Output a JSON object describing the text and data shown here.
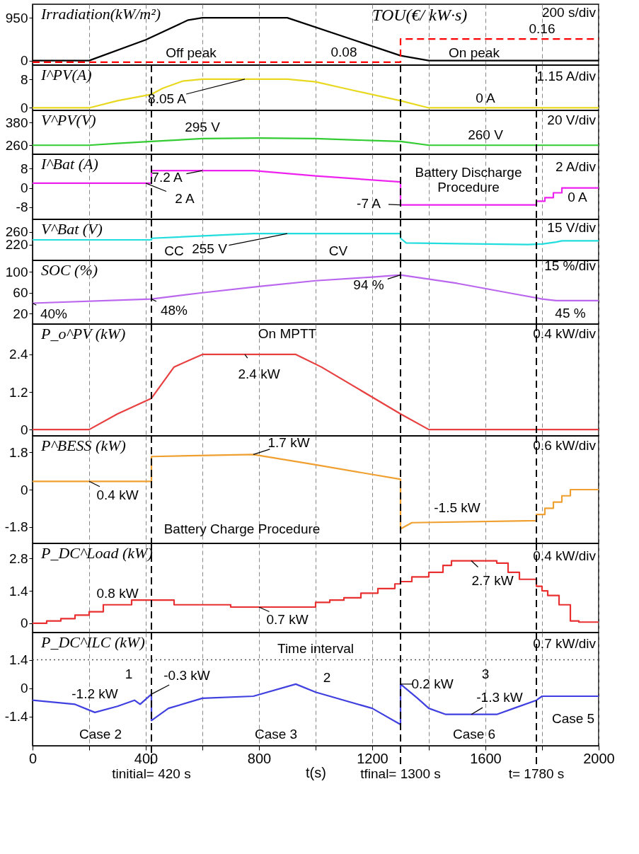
{
  "chart_data": [
    {
      "type": "line",
      "ylabel": "Irradiation(kW/m²)",
      "y2label": "TOU(€/ kW·s)",
      "xlim": [
        0,
        2000
      ],
      "ylim": [
        -100,
        1250
      ],
      "yticks": [
        0,
        950
      ],
      "y2lim": [
        0.07,
        0.28
      ],
      "xticks": [
        0,
        {
          "value": 200,
          "label": null
        },
        400,
        {
          "value": 600,
          "label": null
        },
        800,
        {
          "value": 1000,
          "label": null
        },
        1200,
        {
          "value": 1400,
          "label": null
        },
        1600,
        {
          "value": 1800,
          "label": null
        },
        2000
      ],
      "tick_labels": "y",
      "grid": "x",
      "series": [
        {
          "color": "#000000",
          "x": [
            0,
            200,
            400,
            550,
            600,
            900,
            1300,
            1400,
            2000
          ],
          "values": [
            0,
            0,
            460,
            900,
            950,
            950,
            110,
            0,
            0
          ]
        },
        {
          "color": "#ff0000",
          "axis": "y2",
          "line_style": "dashed",
          "x": [
            0,
            1100,
            1300,
            1300,
            1800,
            2000
          ],
          "values": [
            0.08,
            0.08,
            0.08,
            0.16,
            0.16,
            0.16
          ],
          "value_labels": [
            null,
            "0.08",
            null,
            null,
            "0.16",
            null
          ]
        }
      ],
      "annotations": [
        "Off peak",
        "On peak",
        "200 s/div"
      ]
    },
    {
      "type": "line",
      "ylabel": "I^PV(A)",
      "xlim": [
        0,
        2000
      ],
      "ylim": [
        -0.7,
        12
      ],
      "yticks": [
        0,
        8
      ],
      "xticks": [
        0,
        {
          "value": 200,
          "label": null
        },
        400,
        {
          "value": 600,
          "label": null
        },
        800,
        {
          "value": 1000,
          "label": null
        },
        1200,
        {
          "value": 1400,
          "label": null
        },
        1600,
        {
          "value": 1800,
          "label": null
        },
        2000
      ],
      "tick_labels": "y",
      "grid": "x",
      "series": [
        {
          "color": "#e8d820",
          "x": [
            0,
            200,
            300,
            420,
            460,
            530,
            600,
            900,
            1000,
            1100,
            1300,
            1400,
            2000
          ],
          "values": [
            0,
            0,
            2,
            3.8,
            5.5,
            7.5,
            8.05,
            8.05,
            7.3,
            5.5,
            2,
            0,
            0
          ]
        }
      ],
      "ref_lines": [
        {
          "axis": "x",
          "value": 420,
          "line_style": "dashed"
        },
        {
          "axis": "x",
          "value": 1300,
          "line_style": "dashed"
        },
        {
          "axis": "x",
          "value": 1780,
          "line_style": "dashed"
        }
      ],
      "annotations": [
        {
          "text": "8.05 A",
          "x": 750,
          "y": 8.05
        },
        {
          "text": "0 A",
          "x": 1600,
          "y": 0
        },
        "1.15 A/div"
      ]
    },
    {
      "type": "line",
      "ylabel": "V^PV(V)",
      "xlim": [
        0,
        2000
      ],
      "ylim": [
        212,
        445
      ],
      "yticks": [
        260,
        380
      ],
      "xticks": [
        0,
        {
          "value": 200,
          "label": null
        },
        400,
        {
          "value": 600,
          "label": null
        },
        800,
        {
          "value": 1000,
          "label": null
        },
        1200,
        {
          "value": 1400,
          "label": null
        },
        1600,
        {
          "value": 1800,
          "label": null
        },
        2000
      ],
      "tick_labels": "y",
      "grid": "x",
      "series": [
        {
          "color": "#33cc33",
          "x": [
            0,
            200,
            300,
            420,
            600,
            800,
            1000,
            1200,
            1300,
            1400,
            2000
          ],
          "values": [
            260,
            260,
            270,
            280,
            295,
            298,
            295,
            285,
            280,
            260,
            260
          ]
        }
      ],
      "ref_lines": [
        {
          "axis": "x",
          "value": 420,
          "line_style": "dashed"
        },
        {
          "axis": "x",
          "value": 1300,
          "line_style": "dashed"
        },
        {
          "axis": "x",
          "value": 1780,
          "line_style": "dashed"
        }
      ],
      "annotations": [
        {
          "text": "295 V",
          "x": 600,
          "y": 295
        },
        {
          "text": "260 V",
          "x": 1600,
          "y": 260
        },
        "20 V/div"
      ]
    },
    {
      "type": "line",
      "ylabel": "I^Bat (A)",
      "xlim": [
        0,
        2000
      ],
      "ylim": [
        -13,
        14
      ],
      "yticks": [
        -8,
        0,
        8
      ],
      "xticks": [
        0,
        {
          "value": 200,
          "label": null
        },
        400,
        {
          "value": 600,
          "label": null
        },
        800,
        {
          "value": 1000,
          "label": null
        },
        1200,
        {
          "value": 1400,
          "label": null
        },
        1600,
        {
          "value": 1800,
          "label": null
        },
        2000
      ],
      "tick_labels": "y",
      "grid": "x",
      "series": [
        {
          "color": "#ee22ee",
          "x": [
            0,
            420,
            420,
            780,
            1000,
            1300,
            1300,
            1780,
            1780,
            1810,
            1810,
            1840,
            1840,
            1870,
            1870,
            2000
          ],
          "values": [
            2,
            2,
            7.2,
            7.2,
            5,
            2.5,
            -7,
            -7,
            -5.5,
            -5.5,
            -4,
            -4,
            -2,
            -2,
            0,
            0
          ]
        }
      ],
      "ref_lines": [
        {
          "axis": "x",
          "value": 420,
          "line_style": "dashed"
        },
        {
          "axis": "x",
          "value": 1300,
          "line_style": "dashed"
        },
        {
          "axis": "x",
          "value": 1780,
          "line_style": "dashed"
        }
      ],
      "annotations": [
        {
          "text": "7.2 A",
          "x": 600,
          "y": 7.2
        },
        {
          "text": "2 A",
          "x": 400,
          "y": 2
        },
        {
          "text": "-7 A",
          "x": 1300,
          "y": -7
        },
        "Battery Discharge\nProcedure",
        {
          "text": "0 A",
          "x": 1950,
          "y": 0
        },
        "2 A/div"
      ]
    },
    {
      "type": "line",
      "ylabel": "V^Bat (V)",
      "xlim": [
        0,
        2000
      ],
      "ylim": [
        170,
        300
      ],
      "yticks": [
        220,
        260
      ],
      "xticks": [
        0,
        {
          "value": 200,
          "label": null
        },
        400,
        {
          "value": 600,
          "label": null
        },
        800,
        {
          "value": 1000,
          "label": null
        },
        1200,
        {
          "value": 1400,
          "label": null
        },
        1600,
        {
          "value": 1800,
          "label": null
        },
        2000
      ],
      "tick_labels": "y",
      "grid": "x",
      "series": [
        {
          "color": "#22dddd",
          "x": [
            0,
            420,
            420,
            780,
            1300,
            1300,
            1320,
            1500,
            1750,
            1800,
            1850,
            1870,
            2000
          ],
          "values": [
            235,
            235,
            240,
            255,
            255,
            240,
            225,
            223,
            220,
            222,
            228,
            232,
            232
          ]
        }
      ],
      "ref_lines": [
        {
          "axis": "x",
          "value": 420,
          "line_style": "dashed"
        },
        {
          "axis": "x",
          "value": 1300,
          "line_style": "dashed"
        },
        {
          "axis": "x",
          "value": 1780,
          "line_style": "dashed"
        }
      ],
      "annotations": [
        {
          "text": "255 V",
          "x": 900,
          "y": 255
        },
        "CC",
        "CV",
        "15 V/div"
      ]
    },
    {
      "type": "line",
      "ylabel": "SOC (%)",
      "xlim": [
        0,
        2000
      ],
      "ylim": [
        0,
        122
      ],
      "yticks": [
        20,
        60,
        100
      ],
      "xticks": [
        0,
        {
          "value": 200,
          "label": null
        },
        400,
        {
          "value": 600,
          "label": null
        },
        800,
        {
          "value": 1000,
          "label": null
        },
        1200,
        {
          "value": 1400,
          "label": null
        },
        1600,
        {
          "value": 1800,
          "label": null
        },
        2000
      ],
      "tick_labels": "y",
      "grid": "x",
      "series": [
        {
          "color": "#bb66ee",
          "x": [
            0,
            420,
            600,
            800,
            1000,
            1200,
            1300,
            1500,
            1700,
            1800,
            1850,
            2000
          ],
          "values": [
            40,
            48,
            60,
            72,
            83,
            90,
            94,
            78,
            58,
            48,
            45,
            45
          ]
        }
      ],
      "ref_lines": [
        {
          "axis": "x",
          "value": 420,
          "line_style": "dashed"
        },
        {
          "axis": "x",
          "value": 1300,
          "line_style": "dashed"
        },
        {
          "axis": "x",
          "value": 1780,
          "line_style": "dashed"
        }
      ],
      "annotations": [
        {
          "text": "40%",
          "x": 0,
          "y": 40
        },
        {
          "text": "48%",
          "x": 420,
          "y": 48
        },
        {
          "text": "94 %",
          "x": 1300,
          "y": 94
        },
        {
          "text": "45 %",
          "x": 1900,
          "y": 45
        },
        "15 %/div"
      ]
    },
    {
      "type": "line",
      "ylabel": "P_o^PV (kW)",
      "xlim": [
        0,
        2000
      ],
      "ylim": [
        -0.2,
        3.37
      ],
      "yticks": [
        0,
        1.2,
        2.4
      ],
      "xticks": [
        0,
        {
          "value": 200,
          "label": null
        },
        400,
        {
          "value": 600,
          "label": null
        },
        800,
        {
          "value": 1000,
          "label": null
        },
        1200,
        {
          "value": 1400,
          "label": null
        },
        1600,
        {
          "value": 1800,
          "label": null
        },
        2000
      ],
      "tick_labels": "y",
      "grid": "x",
      "series": [
        {
          "color": "#e84040",
          "x": [
            0,
            200,
            300,
            420,
            500,
            600,
            930,
            1020,
            1300,
            1400,
            2000
          ],
          "values": [
            0,
            0,
            0.5,
            1.0,
            2.0,
            2.4,
            2.4,
            2.0,
            0.5,
            0,
            0
          ]
        }
      ],
      "ref_lines": [
        {
          "axis": "x",
          "value": 420,
          "line_style": "dashed"
        },
        {
          "axis": "x",
          "value": 1300,
          "line_style": "dashed"
        },
        {
          "axis": "x",
          "value": 1780,
          "line_style": "dashed"
        }
      ],
      "annotations": [
        "On MPTT",
        {
          "text": "2.4 kW",
          "x": 750,
          "y": 2.4
        },
        "0.4 kW/div"
      ]
    },
    {
      "type": "line",
      "ylabel": "P^BESS (kW)",
      "xlim": [
        0,
        2000
      ],
      "ylim": [
        -2.6,
        2.6
      ],
      "yticks": [
        -1.8,
        0,
        1.8
      ],
      "xticks": [
        0,
        {
          "value": 200,
          "label": null
        },
        400,
        {
          "value": 600,
          "label": null
        },
        800,
        {
          "value": 1000,
          "label": null
        },
        1200,
        {
          "value": 1400,
          "label": null
        },
        1600,
        {
          "value": 1800,
          "label": null
        },
        2000
      ],
      "tick_labels": "y",
      "grid": "x",
      "series": [
        {
          "color": "#f0a030",
          "x": [
            0,
            420,
            420,
            780,
            1000,
            1300,
            1300,
            1340,
            1780,
            1780,
            1810,
            1810,
            1840,
            1840,
            1870,
            1870,
            1900,
            1900,
            2000
          ],
          "values": [
            0.4,
            0.4,
            1.6,
            1.7,
            1.2,
            0.5,
            -1.9,
            -1.6,
            -1.5,
            -1.2,
            -1.2,
            -0.9,
            -0.9,
            -0.6,
            -0.6,
            -0.3,
            -0.3,
            0,
            0
          ]
        }
      ],
      "ref_lines": [
        {
          "axis": "x",
          "value": 420,
          "line_style": "dashed"
        },
        {
          "axis": "x",
          "value": 1300,
          "line_style": "dashed"
        },
        {
          "axis": "x",
          "value": 1780,
          "line_style": "dashed"
        }
      ],
      "annotations": [
        {
          "text": "1.7 kW",
          "x": 780,
          "y": 1.7
        },
        {
          "text": "0.4 kW",
          "x": 200,
          "y": 0.4
        },
        {
          "text": "-1.5 kW",
          "x": 1500,
          "y": -1.5
        },
        "Battery Charge Procedure",
        "0.6 kW/div"
      ]
    },
    {
      "type": "step",
      "ylabel": "P_DC^Load (kW)",
      "xlim": [
        0,
        2000
      ],
      "ylim": [
        -0.4,
        3.45
      ],
      "yticks": [
        0,
        1.4,
        2.8
      ],
      "xticks": [
        0,
        {
          "value": 200,
          "label": null
        },
        400,
        {
          "value": 600,
          "label": null
        },
        800,
        {
          "value": 1000,
          "label": null
        },
        1200,
        {
          "value": 1400,
          "label": null
        },
        1600,
        {
          "value": 1800,
          "label": null
        },
        2000
      ],
      "tick_labels": "y",
      "grid": "x",
      "series": [
        {
          "color": "#e83030",
          "x": [
            0,
            50,
            100,
            150,
            200,
            250,
            350,
            500,
            700,
            1000,
            1050,
            1100,
            1160,
            1220,
            1280,
            1300,
            1340,
            1400,
            1450,
            1480,
            1640,
            1680,
            1720,
            1780,
            1800,
            1820,
            1860,
            1900,
            1930,
            2000
          ],
          "values": [
            0,
            0.1,
            0.2,
            0.35,
            0.5,
            0.8,
            1.0,
            0.8,
            0.7,
            0.9,
            1.0,
            1.1,
            1.3,
            1.5,
            1.7,
            1.8,
            2.0,
            2.2,
            2.5,
            2.7,
            2.6,
            2.2,
            1.9,
            1.6,
            1.4,
            1.2,
            0.8,
            0.1,
            0.05,
            0.05
          ]
        }
      ],
      "ref_lines": [
        {
          "axis": "x",
          "value": 420,
          "line_style": "dashed"
        },
        {
          "axis": "x",
          "value": 1300,
          "line_style": "dashed"
        },
        {
          "axis": "x",
          "value": 1780,
          "line_style": "dashed"
        }
      ],
      "annotations": [
        {
          "text": "0.8 kW",
          "x": 300,
          "y": 0.8
        },
        {
          "text": "0.7 kW",
          "x": 800,
          "y": 0.7
        },
        {
          "text": "2.7 kW",
          "x": 1550,
          "y": 2.7
        },
        "0.4 kW/div"
      ]
    },
    {
      "type": "line",
      "ylabel": "P_DC^ILC (kW)",
      "xlabel": "t(s)",
      "xlim": [
        0,
        2000
      ],
      "ylim": [
        -2.85,
        2.75
      ],
      "yticks": [
        -1.4,
        0,
        1.4
      ],
      "xticks": [
        0,
        {
          "value": 200,
          "label": null
        },
        400,
        {
          "value": 600,
          "label": null
        },
        800,
        {
          "value": 1000,
          "label": null
        },
        1200,
        {
          "value": 1400,
          "label": null
        },
        1600,
        {
          "value": 1800,
          "label": null
        },
        2000
      ],
      "grid": "x",
      "series": [
        {
          "color": "#4040e0",
          "x": [
            0,
            150,
            220,
            300,
            360,
            380,
            420,
            420,
            480,
            600,
            780,
            930,
            1000,
            1200,
            1300,
            1300,
            1360,
            1400,
            1460,
            1640,
            1700,
            1780,
            1800,
            2000
          ],
          "values": [
            -0.6,
            -0.8,
            -1.2,
            -0.9,
            -0.6,
            -0.8,
            -0.3,
            -1.6,
            -1.0,
            -0.5,
            -0.4,
            0.2,
            -0.2,
            -1.0,
            -1.8,
            0.2,
            -0.5,
            -1.0,
            -1.3,
            -1.3,
            -1.0,
            -0.6,
            -0.4,
            -0.4
          ]
        }
      ],
      "ref_lines": [
        {
          "axis": "x",
          "value": 420,
          "line_style": "dashed",
          "label": "tinitial= 420 s"
        },
        {
          "axis": "x",
          "value": 1300,
          "line_style": "dashed",
          "label": "tfinal= 1300 s"
        },
        {
          "axis": "x",
          "value": 1780,
          "line_style": "dashed",
          "label": "t= 1780 s"
        },
        {
          "axis": "y",
          "value": 1.4,
          "line_style": "dotted",
          "color": "#555555",
          "label": "Time interval"
        }
      ],
      "annotations": [
        "1",
        "2",
        "3",
        {
          "text": "-1.2 kW",
          "x": 220,
          "y": -1.2
        },
        {
          "text": "-0.3 kW",
          "x": 420,
          "y": -0.3
        },
        {
          "text": "0.2 kW",
          "x": 1300,
          "y": 0.2
        },
        {
          "text": "-1.3 kW",
          "x": 1550,
          "y": -1.3
        },
        "Case 2",
        "Case 3",
        "Case 6",
        "Case 5",
        "0.7 kW/div"
      ]
    }
  ]
}
